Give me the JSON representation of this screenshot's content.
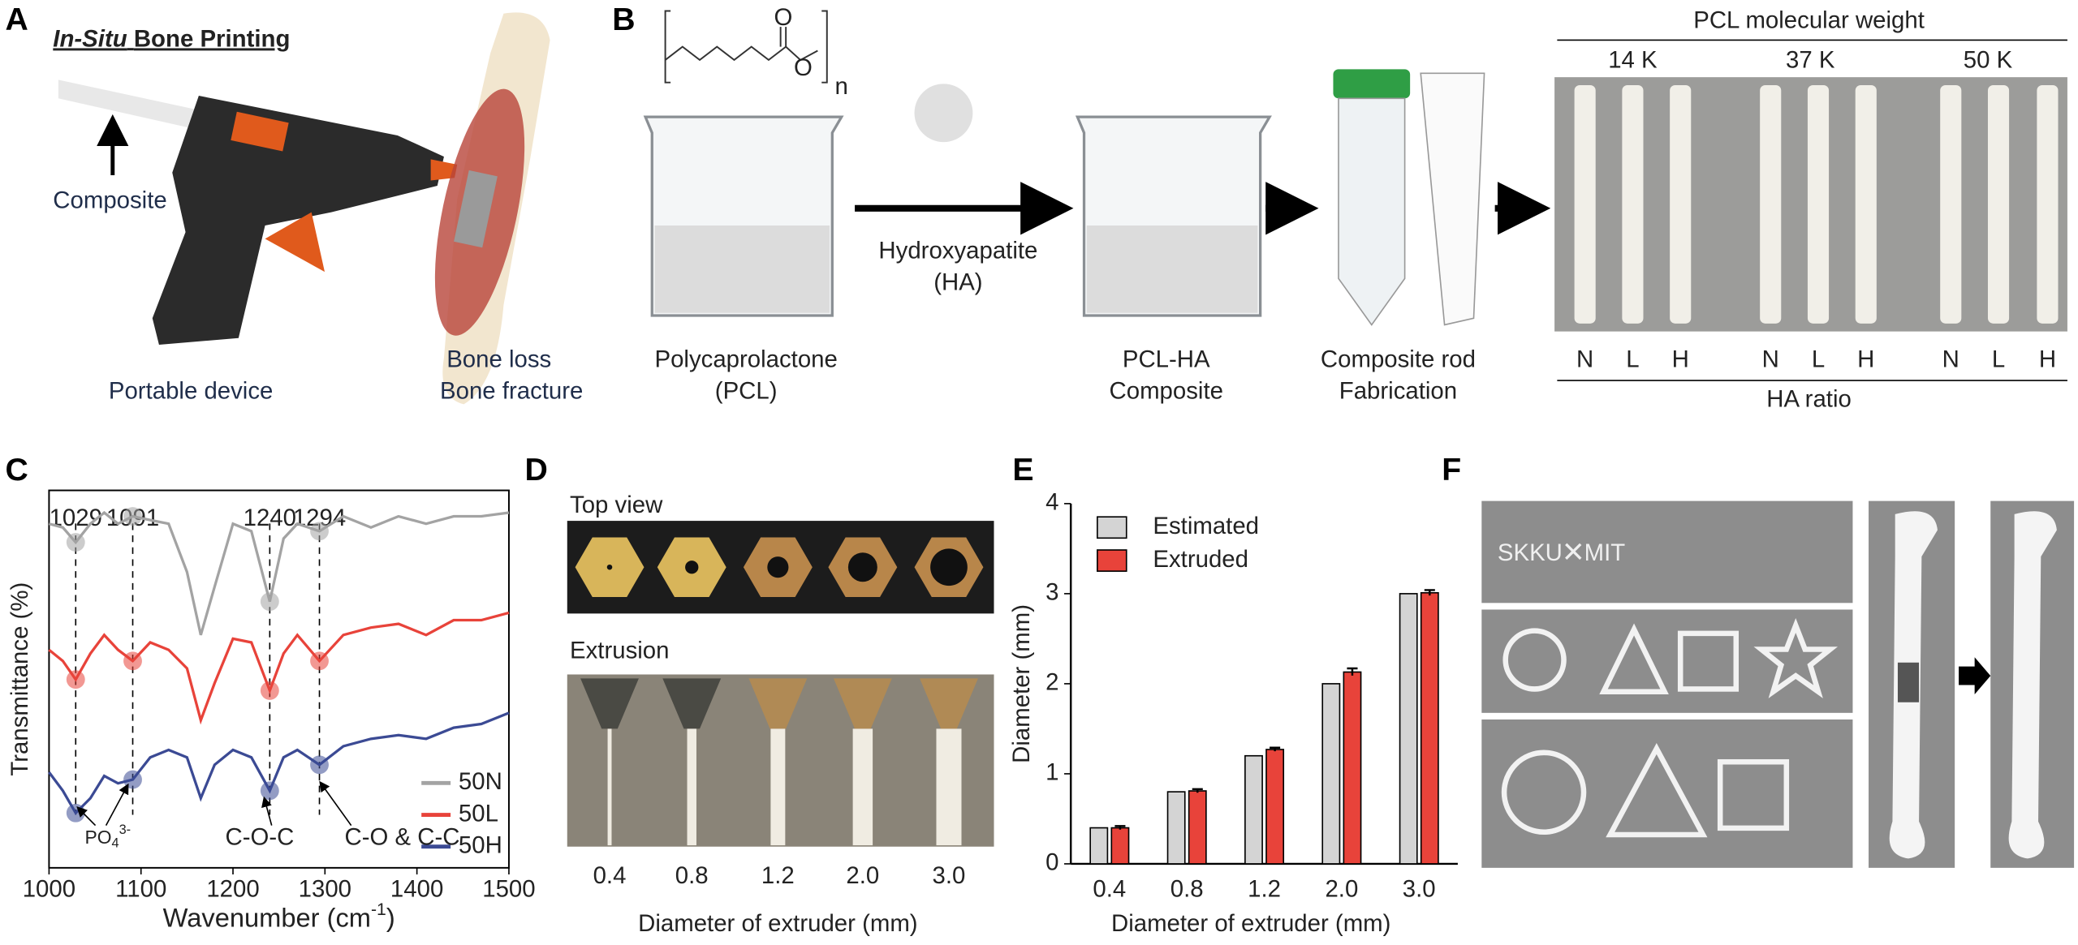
{
  "panel_labels": [
    "A",
    "B",
    "C",
    "D",
    "E",
    "F"
  ],
  "panel_a": {
    "title_italic": "In-Situ",
    "title": "Bone Printing",
    "input": "Composite",
    "device": "Portable device",
    "injury_1": "Bone loss",
    "injury_2": "Bone fracture"
  },
  "panel_b": {
    "structure_o1": "O",
    "structure_o2": "O",
    "structure_n": "n",
    "pcl": [
      "Polycaprolactone",
      "(PCL)"
    ],
    "ha": [
      "Hydroxyapatite",
      "(HA)"
    ],
    "composite": [
      "PCL-HA",
      "Composite"
    ],
    "rod": [
      "Composite rod",
      "Fabrication"
    ],
    "mw_title": "PCL molecular weight",
    "mw": [
      "14 K",
      "37 K",
      "50 K"
    ],
    "ratios": [
      "N",
      "L",
      "H",
      "N",
      "L",
      "H",
      "N",
      "L",
      "H"
    ],
    "ratio_title": "HA ratio"
  },
  "panel_d": {
    "top": "Top view",
    "extrusion": "Extrusion",
    "sizes": [
      "0.4",
      "0.8",
      "1.2",
      "2.0",
      "3.0"
    ],
    "xlabel": "Diameter of extruder (mm)"
  },
  "panel_f": {
    "text": [
      "SKKU",
      "×",
      "MIT"
    ]
  },
  "chart_data": [
    {
      "type": "line",
      "ylabel": "Transmittance (%)",
      "xlabel": [
        "Wavenumber (cm",
        "-1",
        ")"
      ],
      "x": [
        1000,
        1015,
        1029,
        1045,
        1060,
        1075,
        1091,
        1110,
        1130,
        1150,
        1165,
        1180,
        1200,
        1220,
        1240,
        1255,
        1270,
        1294,
        1320,
        1350,
        1380,
        1410,
        1440,
        1470,
        1500
      ],
      "xlim": [
        1000,
        1500
      ],
      "xticks": [
        1000,
        1100,
        1200,
        1300,
        1400,
        1500
      ],
      "ylim": [
        0,
        100
      ],
      "series": [
        {
          "name": "50N",
          "color": "#a3a3a3",
          "values": [
            91,
            90,
            86,
            91,
            94,
            91,
            93,
            92,
            91,
            78,
            61,
            74,
            91,
            89,
            70,
            87,
            91,
            89,
            93,
            90,
            93,
            91,
            93,
            93,
            94
          ]
        },
        {
          "name": "50L",
          "color": "#e8433a",
          "values": [
            57,
            54,
            49,
            56,
            61,
            57,
            54,
            59,
            57,
            52,
            38,
            48,
            60,
            59,
            46,
            56,
            61,
            54,
            61,
            63,
            64,
            61,
            65,
            65,
            67
          ]
        },
        {
          "name": "50H",
          "color": "#3b4a94",
          "values": [
            24,
            19,
            13,
            17,
            23,
            21,
            22,
            28,
            30,
            28,
            17,
            26,
            30,
            28,
            19,
            28,
            30,
            26,
            31,
            33,
            34,
            33,
            36,
            37,
            40
          ]
        }
      ],
      "peaks": [
        1029,
        1091,
        1240,
        1294
      ],
      "bands": [
        [
          "PO",
          "4",
          "3-"
        ],
        "C-O-C",
        "C-O & C-C"
      ],
      "legend": "lower right"
    },
    {
      "type": "bar",
      "categories": [
        "0.4",
        "0.8",
        "1.2",
        "2.0",
        "3.0"
      ],
      "series": [
        {
          "name": "Estimated",
          "color": "#d4d4d4",
          "values": [
            0.4,
            0.8,
            1.2,
            2.0,
            3.0
          ]
        },
        {
          "name": "Extruded",
          "color": "#e8433a",
          "values": [
            0.4,
            0.81,
            1.27,
            2.13,
            3.01
          ],
          "errors": [
            0.02,
            0.02,
            0.02,
            0.04,
            0.03
          ]
        }
      ],
      "ylim": [
        0,
        4
      ],
      "yticks": [
        0,
        1,
        2,
        3,
        4
      ],
      "ylabel": "Diameter (mm)",
      "xlabel": "Diameter of extruder (mm)",
      "legend": "upper left"
    }
  ]
}
